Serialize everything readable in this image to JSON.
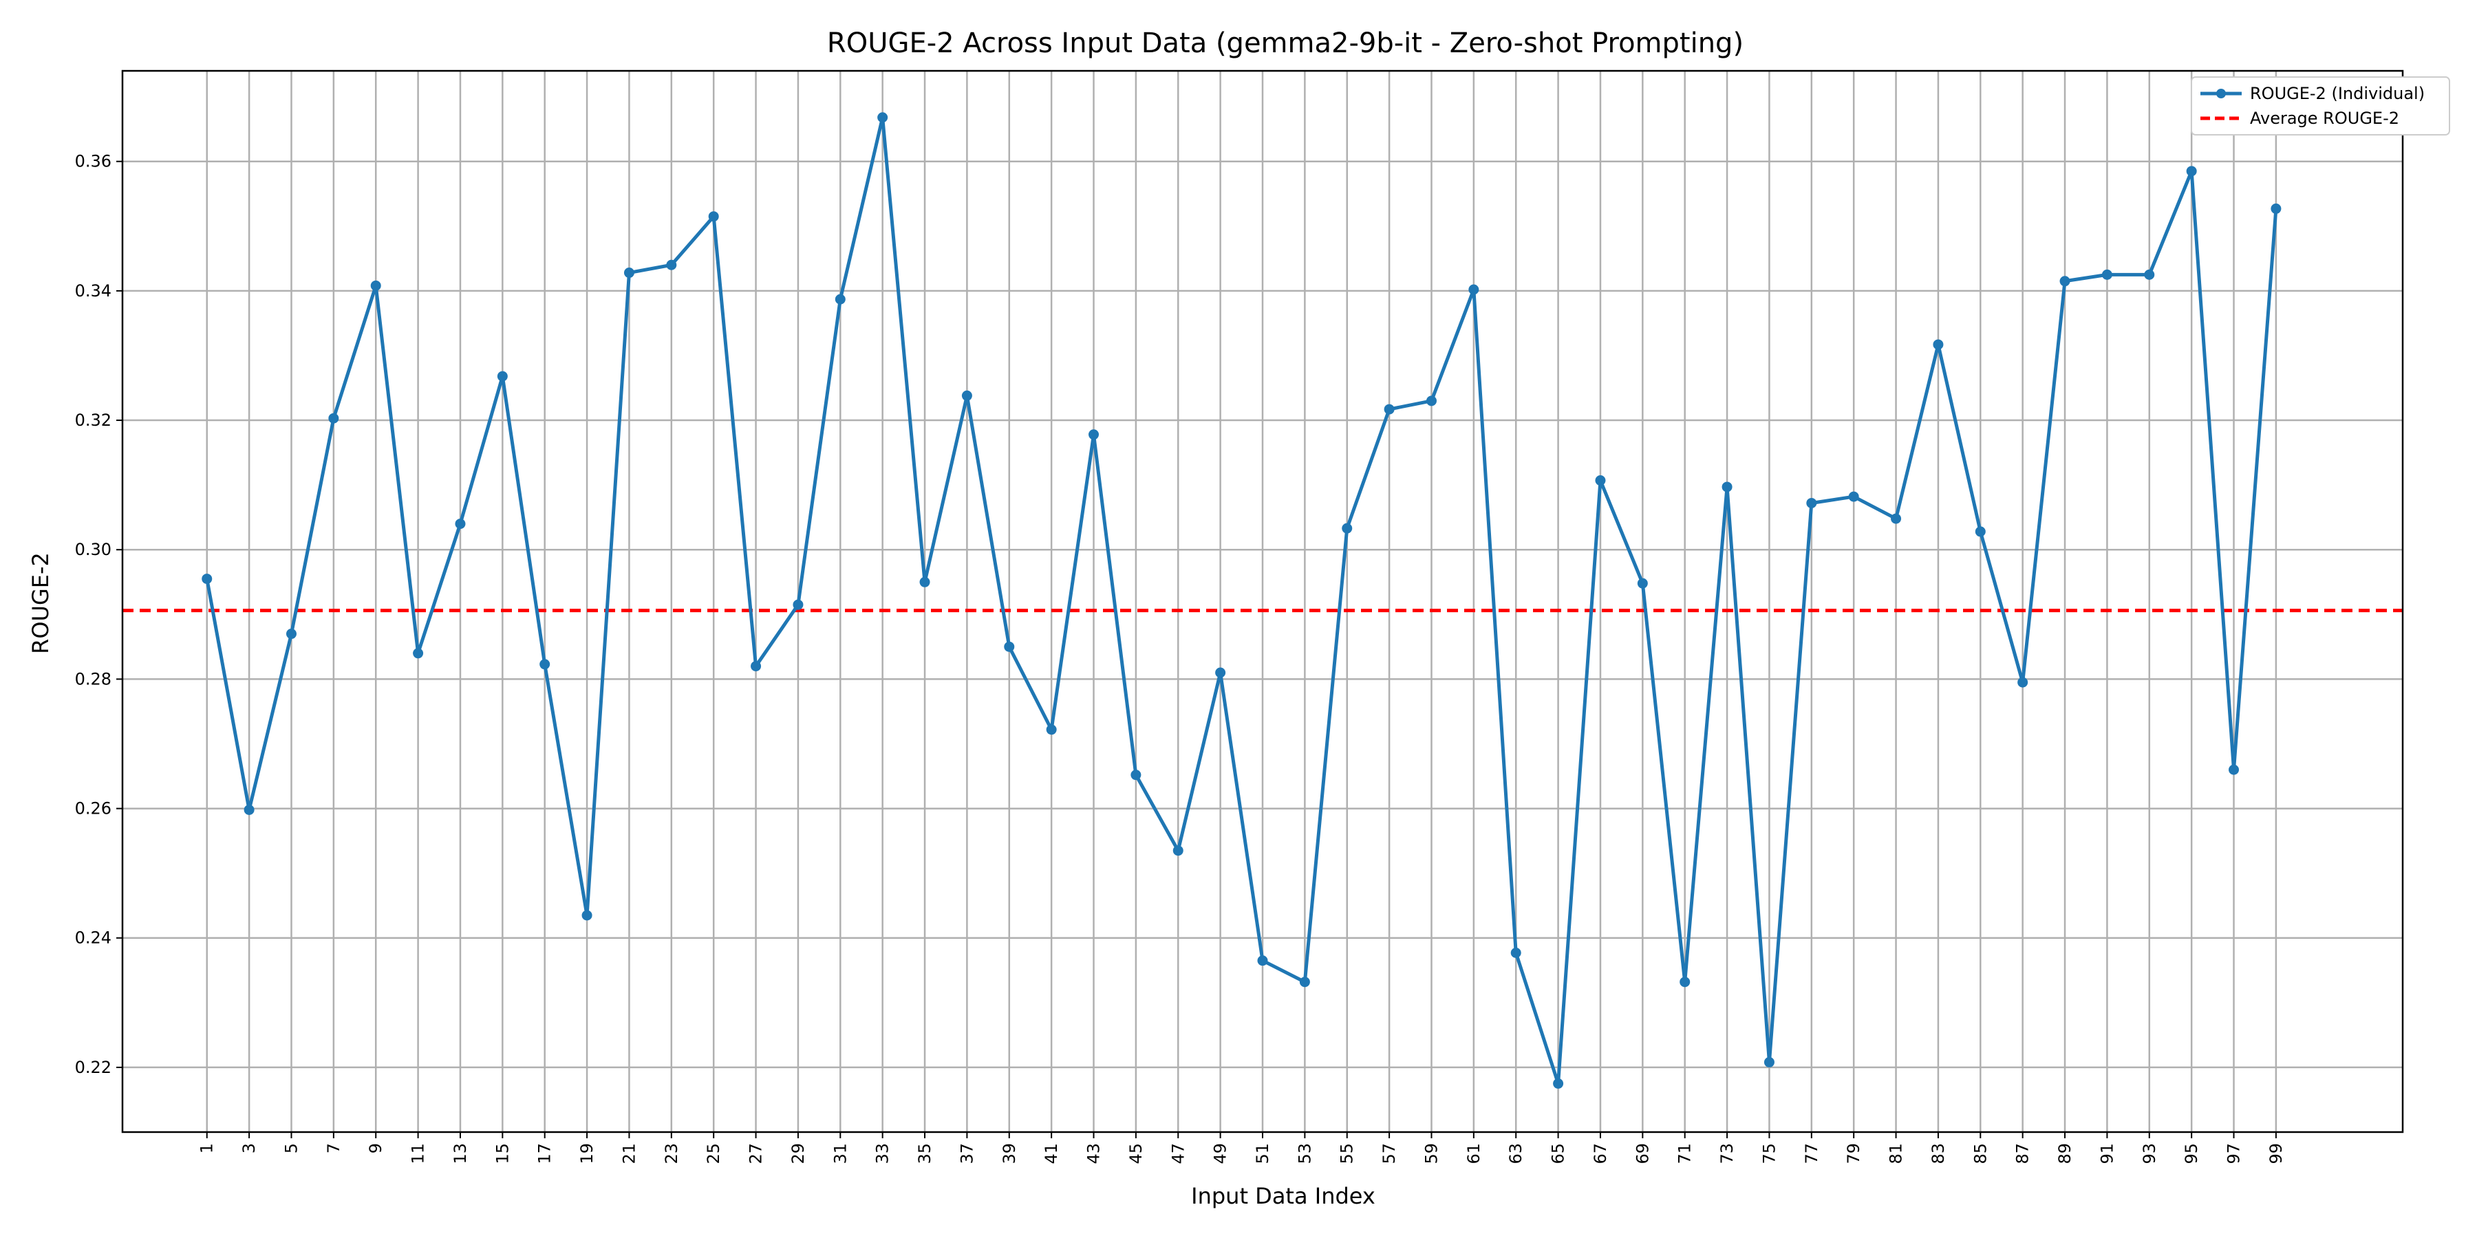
{
  "chart_data": {
    "type": "line",
    "title": "ROUGE-2 Across Input Data (gemma2-9b-it - Zero-shot Prompting)",
    "xlabel": "Input Data Index",
    "ylabel": "ROUGE-2",
    "xlim": [
      -3,
      105
    ],
    "ylim": [
      0.21,
      0.374
    ],
    "grid": true,
    "legend_position": "top-right",
    "x_ticks": [
      1,
      3,
      5,
      7,
      9,
      11,
      13,
      15,
      17,
      19,
      21,
      23,
      25,
      27,
      29,
      31,
      33,
      35,
      37,
      39,
      41,
      43,
      45,
      47,
      49,
      51,
      53,
      55,
      57,
      59,
      61,
      63,
      65,
      67,
      69,
      71,
      73,
      75,
      77,
      79,
      81,
      83,
      85,
      87,
      89,
      91,
      93,
      95,
      97,
      99
    ],
    "y_ticks": [
      0.22,
      0.24,
      0.26,
      0.28,
      0.3,
      0.32,
      0.34,
      0.36
    ],
    "y_tick_labels": [
      "0.22",
      "0.24",
      "0.26",
      "0.28",
      "0.30",
      "0.32",
      "0.34",
      "0.36"
    ],
    "series": [
      {
        "name": "ROUGE-2 (Individual)",
        "color": "#1f77b4",
        "marker": "circle",
        "x": [
          1,
          3,
          5,
          7,
          9,
          11,
          13,
          15,
          17,
          19,
          21,
          23,
          25,
          27,
          29,
          31,
          33,
          35,
          37,
          39,
          41,
          43,
          45,
          47,
          49,
          51,
          53,
          55,
          57,
          59,
          61,
          63,
          65,
          67,
          69,
          71,
          73,
          75,
          77,
          79,
          81,
          83,
          85,
          87,
          89,
          91,
          93,
          95,
          97,
          99
        ],
        "values": [
          0.2955,
          0.2598,
          0.287,
          0.3203,
          0.3408,
          0.284,
          0.304,
          0.3268,
          0.2823,
          0.2435,
          0.3428,
          0.344,
          0.3515,
          0.282,
          0.2915,
          0.3387,
          0.3668,
          0.295,
          0.3238,
          0.285,
          0.2722,
          0.3178,
          0.2652,
          0.2535,
          0.281,
          0.2365,
          0.2332,
          0.3033,
          0.3217,
          0.323,
          0.3402,
          0.2377,
          0.2175,
          0.3107,
          0.2948,
          0.2332,
          0.3097,
          0.2208,
          0.3072,
          0.3082,
          0.3048,
          0.3317,
          0.3028,
          0.2795,
          0.3415,
          0.3425,
          0.3425,
          0.3585,
          0.266,
          0.3527
        ]
      },
      {
        "name": "Average ROUGE-2",
        "color": "#ff0000",
        "style": "dashed",
        "value": 0.2906
      }
    ]
  }
}
